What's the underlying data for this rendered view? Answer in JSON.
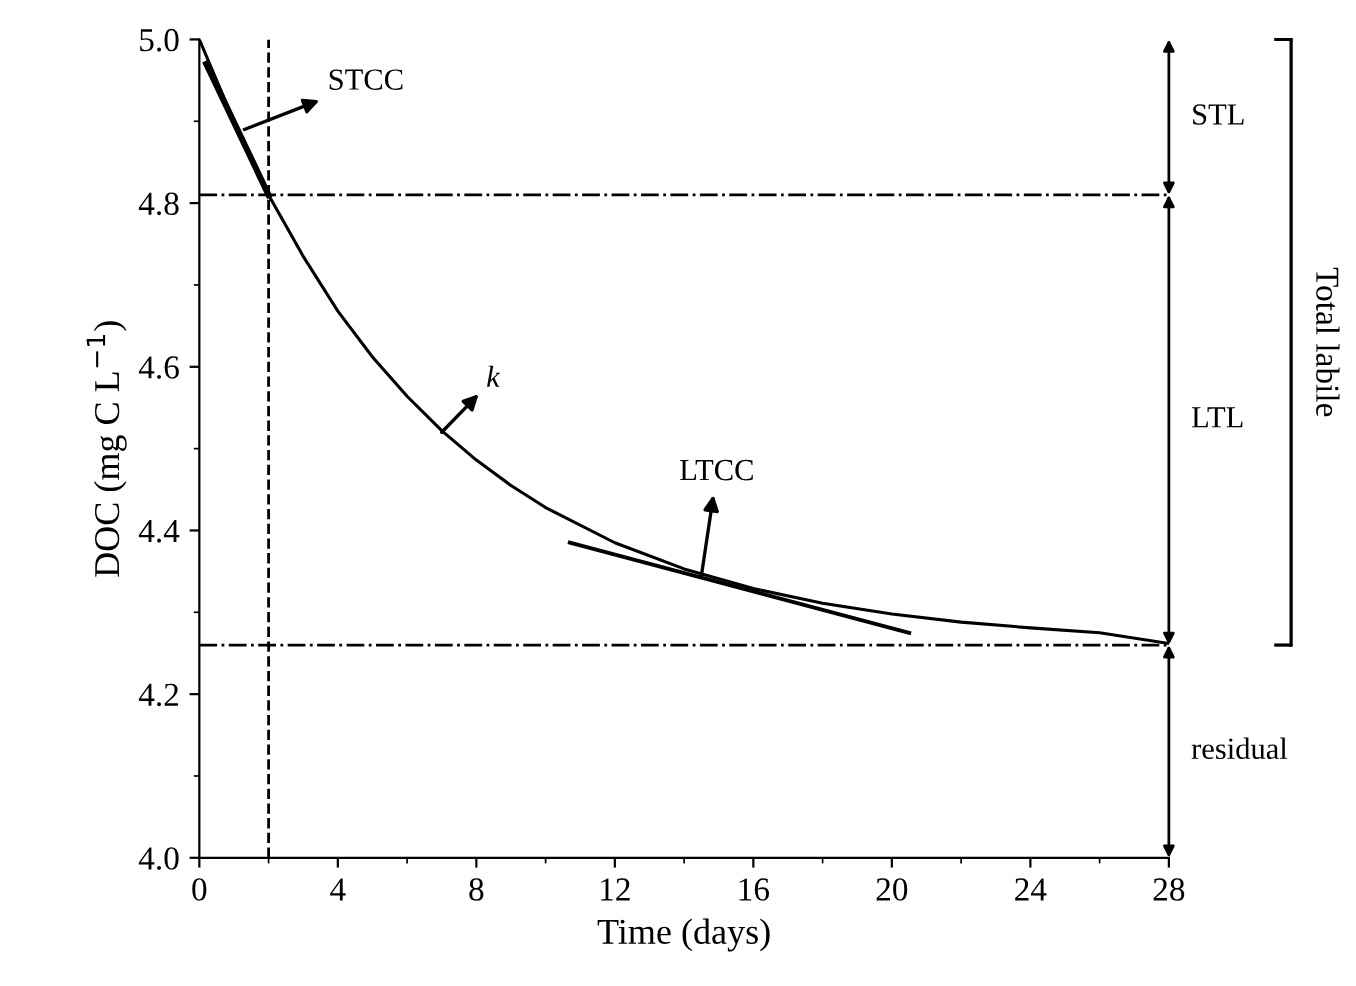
{
  "chart_data": {
    "type": "line",
    "xlabel": "Time (days)",
    "ylabel": "DOC (mg C L$^{−1}$)",
    "xlim": [
      0,
      28
    ],
    "xticks": [
      0,
      4,
      8,
      12,
      16,
      20,
      24,
      28
    ],
    "ylim": [
      4.0,
      5.0
    ],
    "yticks": [
      {
        "value": 4.0,
        "label": "4.0"
      },
      4.2,
      4.4,
      4.6,
      4.8,
      {
        "value": 5.0,
        "label": "5.0"
      }
    ],
    "series": [
      {
        "color": "#000000",
        "x": [
          0,
          1,
          2,
          3,
          4,
          5,
          6,
          7,
          8,
          9,
          10,
          12,
          14,
          16,
          18,
          20,
          22,
          24,
          26,
          28
        ],
        "values": [
          5.0,
          4.9,
          4.81,
          4.735,
          4.668,
          4.612,
          4.564,
          4.522,
          4.486,
          4.455,
          4.428,
          4.385,
          4.353,
          4.329,
          4.311,
          4.298,
          4.288,
          4.281,
          4.275,
          4.262
        ]
      },
      {
        "color": "#000000",
        "x": [
          0.2,
          2.0
        ],
        "values": [
          4.97,
          4.81
        ]
      },
      {
        "color": "#000000",
        "x": [
          10.7,
          20.5
        ],
        "values": [
          4.385,
          4.275
        ]
      }
    ],
    "ref_lines": [
      {
        "axis": "y",
        "value": 4.81,
        "line_style": "dotted"
      },
      {
        "axis": "y",
        "value": 4.26,
        "line_style": "dotted"
      },
      {
        "axis": "x",
        "value": 2,
        "line_style": "dashed"
      }
    ],
    "annotations": [
      {
        "text": "STCC",
        "x": 1.3,
        "y": 4.89
      },
      {
        "text": "k",
        "x": 7,
        "y": 4.52
      },
      {
        "text": "LTCC",
        "x": 14.5,
        "y": 4.345
      },
      "STL",
      "LTL",
      "residual",
      "Total labile"
    ],
    "grid": false,
    "legend": false,
    "marker": "none",
    "line_style": "solid"
  }
}
